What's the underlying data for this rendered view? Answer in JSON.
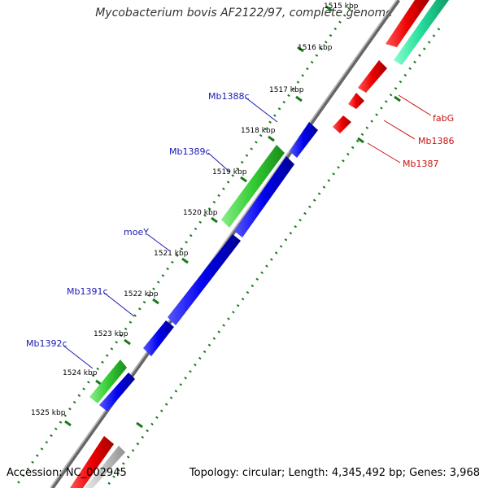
{
  "title": "Mycobacterium bovis AF2122/97, complete genome",
  "accession": "Accession: NC_002945",
  "summary": "Topology: circular; Length: 4,345,492 bp; Genes: 3,968",
  "colors": {
    "backbone": "#8a8a8a",
    "ticks": "#1a7a1a",
    "forward_cds": "#ee1111",
    "forward_alt": "#22dd99",
    "reverse_cds": "#1111dd",
    "reverse_alt": "#33bb33",
    "grey_feature": "#b8b8b8",
    "left_label": "#1a1ab4",
    "right_label": "#cc1111"
  },
  "scale_labels": [
    "1515 kbp",
    "1516 kbp",
    "1517 kbp",
    "1518 kbp",
    "1519 kbp",
    "1520 kbp",
    "1521 kbp",
    "1522 kbp",
    "1523 kbp",
    "1524 kbp",
    "1525 kbp"
  ],
  "left_genes": [
    "Mb1388c",
    "Mb1389c",
    "moeY",
    "Mb1391c",
    "Mb1392c"
  ],
  "right_genes": [
    "fabG",
    "Mb1386",
    "Mb1387"
  ]
}
